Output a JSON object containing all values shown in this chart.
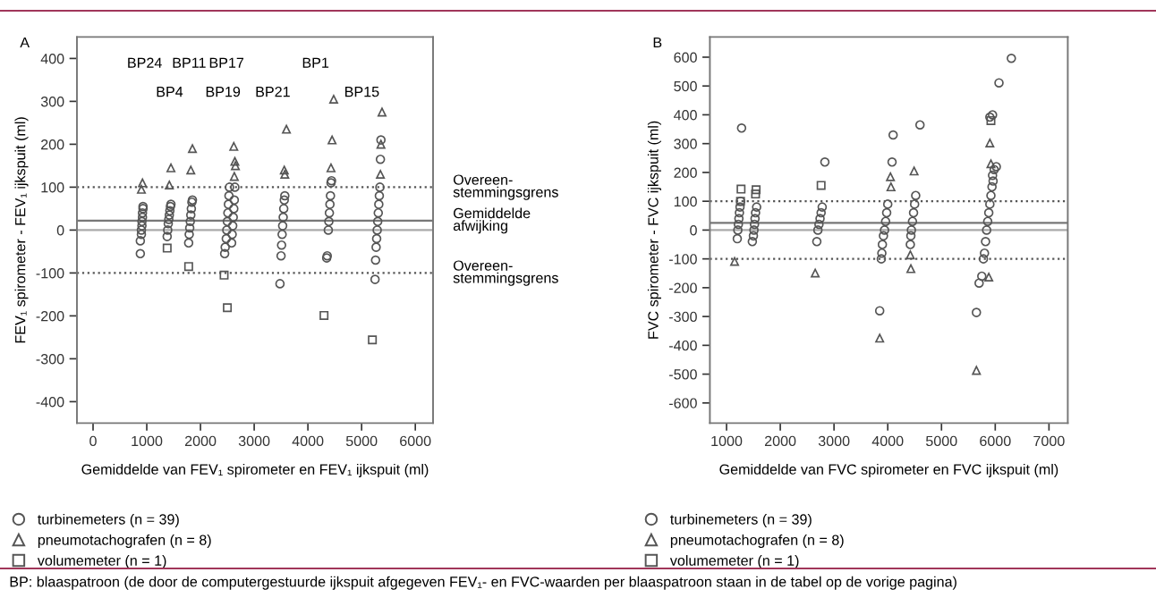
{
  "chart_data": [
    {
      "type": "scatter",
      "title": "A",
      "xlabel": "Gemiddelde van FEV₁ spirometer en FEV₁ ijkspuit (ml)",
      "ylabel": "FEV₁ spirometer - FEV₁ ijkspuit (ml)",
      "xlim": [
        -300,
        6330
      ],
      "ylim": [
        -450,
        450
      ],
      "xticks": [
        0,
        1000,
        2000,
        3000,
        4000,
        5000,
        6000
      ],
      "yticks": [
        -400,
        -300,
        -200,
        -100,
        0,
        100,
        200,
        300,
        400
      ],
      "grid": false,
      "legend": "bottom",
      "series": [
        {
          "name": "turbinemeters (n = 39)",
          "marker": "circle",
          "color": "#555555",
          "x": [
            880,
            880,
            900,
            900,
            910,
            910,
            920,
            920,
            930,
            930,
            1380,
            1390,
            1400,
            1410,
            1420,
            1430,
            1440,
            1450,
            1780,
            1790,
            1800,
            1810,
            1820,
            1830,
            1840,
            1850,
            2450,
            2460,
            2480,
            2490,
            2500,
            2510,
            2520,
            2530,
            2540,
            2580,
            2590,
            2600,
            2610,
            2620,
            2630,
            2640,
            3480,
            3500,
            3510,
            3520,
            3530,
            3540,
            3550,
            3560,
            3570,
            4350,
            4360,
            4380,
            4390,
            4400,
            4410,
            4420,
            4430,
            4440,
            5250,
            5260,
            5270,
            5280,
            5290,
            5300,
            5310,
            5320,
            5330,
            5340,
            5350,
            5360
          ],
          "values": [
            -55,
            -25,
            -10,
            0,
            10,
            20,
            30,
            40,
            50,
            55,
            -15,
            0,
            15,
            25,
            35,
            45,
            55,
            60,
            -30,
            -10,
            5,
            20,
            35,
            50,
            65,
            70,
            -55,
            -40,
            -20,
            0,
            20,
            40,
            60,
            80,
            100,
            -30,
            -10,
            10,
            30,
            50,
            70,
            100,
            -125,
            -60,
            -35,
            -10,
            10,
            30,
            50,
            70,
            80,
            -65,
            -60,
            0,
            20,
            40,
            60,
            80,
            110,
            115,
            -115,
            -70,
            -40,
            -20,
            0,
            20,
            40,
            60,
            80,
            100,
            165,
            210
          ]
        },
        {
          "name": "pneumotachografen (n = 8)",
          "marker": "triangle",
          "color": "#555555",
          "x": [
            920,
            900,
            1450,
            1420,
            1850,
            1820,
            2620,
            2640,
            2650,
            2630,
            3600,
            3560,
            3570,
            4480,
            4450,
            4430,
            5380,
            5360,
            5350
          ],
          "values": [
            110,
            95,
            145,
            105,
            190,
            140,
            195,
            160,
            150,
            125,
            235,
            140,
            130,
            305,
            210,
            145,
            275,
            200,
            130
          ]
        },
        {
          "name": "volumemeter (n = 1)",
          "marker": "square",
          "color": "#555555",
          "x": [
            1380,
            1780,
            2440,
            2500,
            4300,
            5200
          ],
          "values": [
            -42,
            -85,
            -105,
            -181,
            -199,
            -256
          ]
        }
      ],
      "ref_lines": [
        {
          "axis": "y",
          "value": 100,
          "label": "Overeen-\nstemmingsgrens",
          "color": "#555555",
          "line_style": "dotted"
        },
        {
          "axis": "y",
          "value": 22,
          "label": "Gemiddelde\nafwijking",
          "color": "#777777",
          "line_style": "solid"
        },
        {
          "axis": "y",
          "value": 0,
          "color": "#aaaaaa",
          "line_style": "solid"
        },
        {
          "axis": "y",
          "value": -100,
          "label": "Overeen-\nstemmingsgrens",
          "color": "#555555",
          "line_style": "dotted"
        }
      ],
      "annotations": [
        "BP24",
        "BP4",
        "BP11",
        "BP17",
        "BP19",
        "BP21",
        "BP1",
        "BP15",
        "BP: blaaspatroon (de door de computergestuurde ijkspuit afgegeven FEV₁- en FVC-waarden per blaaspatroon staan in de tabel op de vorige pagina)"
      ]
    },
    {
      "type": "scatter",
      "title": "B",
      "xlabel": "Gemiddelde van FVC spirometer en FVC ijkspuit (ml)",
      "ylabel": "FVC spirometer - FVC ijkspuit (ml)",
      "xlim": [
        690,
        7350
      ],
      "ylim": [
        -670,
        670
      ],
      "xticks": [
        1000,
        2000,
        3000,
        4000,
        5000,
        6000,
        7000
      ],
      "yticks": [
        -600,
        -500,
        -400,
        -300,
        -200,
        -100,
        0,
        100,
        200,
        300,
        400,
        500,
        600
      ],
      "grid": false,
      "legend": "bottom",
      "series": [
        {
          "name": "turbinemeters (n = 39)",
          "marker": "circle",
          "color": "#555555",
          "x": [
            1280,
            1200,
            1210,
            1220,
            1230,
            1240,
            1250,
            1260,
            1480,
            1500,
            1510,
            1520,
            1530,
            1540,
            1560,
            2830,
            2680,
            2700,
            2720,
            2740,
            2760,
            2780,
            3850,
            3880,
            3890,
            3900,
            3920,
            3940,
            3960,
            3980,
            4000,
            4100,
            4080,
            4600,
            4420,
            4430,
            4440,
            4460,
            4480,
            4500,
            4520,
            6300,
            6070,
            5900,
            5950,
            5980,
            6020,
            5950,
            5650,
            5700,
            5750,
            5780,
            5800,
            5820,
            5840,
            5860,
            5880,
            5900,
            5920,
            5940,
            5960
          ],
          "values": [
            354,
            -30,
            0,
            20,
            40,
            60,
            80,
            100,
            -40,
            -20,
            0,
            20,
            40,
            60,
            80,
            236,
            -40,
            0,
            20,
            40,
            60,
            80,
            -280,
            -100,
            -80,
            -50,
            -20,
            0,
            30,
            60,
            90,
            330,
            236,
            365,
            -50,
            -20,
            0,
            30,
            60,
            90,
            120,
            596,
            511,
            392,
            400,
            210,
            220,
            190,
            -286,
            -184,
            -160,
            -100,
            -80,
            -40,
            0,
            30,
            60,
            90,
            120,
            150,
            170
          ]
        },
        {
          "name": "pneumotachografen (n = 8)",
          "marker": "triangle",
          "color": "#555555",
          "x": [
            1150,
            2650,
            3850,
            4050,
            4060,
            4490,
            4420,
            4430,
            5650,
            5900,
            5920,
            5880
          ],
          "values": [
            -109,
            -149,
            -375,
            185,
            150,
            205,
            -86,
            -134,
            -487,
            302,
            230,
            -163
          ]
        },
        {
          "name": "volumemeter (n = 1)",
          "marker": "square",
          "color": "#555555",
          "x": [
            1270,
            1260,
            1550,
            1540,
            2760,
            5920
          ],
          "values": [
            142,
            100,
            140,
            125,
            155,
            380
          ]
        }
      ],
      "ref_lines": [
        {
          "axis": "y",
          "value": 100,
          "color": "#555555",
          "line_style": "dotted"
        },
        {
          "axis": "y",
          "value": 25,
          "color": "#777777",
          "line_style": "solid"
        },
        {
          "axis": "y",
          "value": 0,
          "color": "#aaaaaa",
          "line_style": "solid"
        },
        {
          "axis": "y",
          "value": -100,
          "color": "#555555",
          "line_style": "dotted"
        }
      ]
    }
  ]
}
